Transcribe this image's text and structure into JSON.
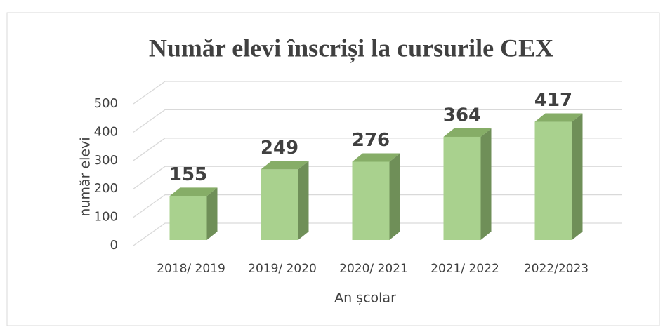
{
  "chart_data": {
    "type": "bar3d",
    "title": "Număr elevi înscriși la cursurile CEX",
    "categories": [
      "2018/ 2019",
      "2019/ 2020",
      "2020/ 2021",
      "2021/ 2022",
      "2022/2023"
    ],
    "values": [
      155,
      249,
      276,
      364,
      417
    ],
    "color": "#a9d18e",
    "x_label": "An școlar",
    "y_label": "număr elevi",
    "ylim": [
      0,
      500
    ],
    "yticks": [
      0,
      100,
      200,
      300,
      400,
      500
    ],
    "grid": true
  }
}
